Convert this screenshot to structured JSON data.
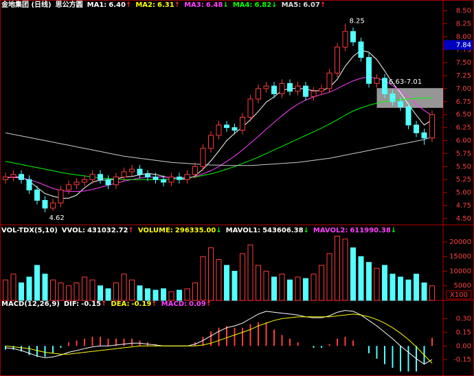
{
  "chart_data": [
    {
      "type": "candlestick",
      "title": "金地集团 (日线)",
      "subtitle": "思公方圆",
      "legend": [
        {
          "name": "MA1:",
          "label": "6.40",
          "arrow": "↑",
          "color": "#ffffff",
          "arrow_color": "#ff3030"
        },
        {
          "name": "MA2:",
          "label": "6.31",
          "arrow": "↑",
          "color": "#ffff00",
          "arrow_color": "#ff3030"
        },
        {
          "name": "MA3:",
          "label": "6.48",
          "arrow": "↓",
          "color": "#ff40ff",
          "arrow_color": "#00ff00"
        },
        {
          "name": "MA4:",
          "label": "6.82",
          "arrow": "↓",
          "color": "#00ff00",
          "arrow_color": "#00ff00"
        },
        {
          "name": "MA5:",
          "label": "6.07",
          "arrow": "↑",
          "color": "#dddddd",
          "arrow_color": "#ff3030"
        }
      ],
      "open": [
        5.25,
        5.3,
        5.35,
        5.25,
        5.05,
        4.85,
        4.7,
        4.8,
        5.05,
        5.15,
        5.2,
        5.25,
        5.35,
        5.25,
        5.15,
        5.3,
        5.4,
        5.45,
        5.35,
        5.3,
        5.25,
        5.2,
        5.3,
        5.25,
        5.35,
        5.5,
        5.85,
        6.1,
        6.3,
        6.25,
        6.2,
        6.45,
        6.8,
        7.0,
        7.05,
        6.9,
        7.1,
        6.95,
        7.05,
        6.85,
        6.95,
        7.0,
        7.3,
        7.8,
        8.1,
        7.9,
        7.6,
        7.1,
        7.2,
        6.9,
        6.75,
        6.65,
        6.3,
        6.15,
        6.05
      ],
      "high": [
        5.38,
        5.43,
        5.43,
        5.33,
        5.13,
        4.93,
        4.88,
        5.13,
        5.23,
        5.28,
        5.33,
        5.43,
        5.43,
        5.33,
        5.38,
        5.48,
        5.53,
        5.53,
        5.43,
        5.38,
        5.33,
        5.38,
        5.38,
        5.43,
        5.58,
        5.93,
        6.18,
        6.38,
        6.38,
        6.33,
        6.53,
        6.88,
        7.08,
        7.13,
        7.13,
        7.18,
        7.18,
        7.13,
        7.13,
        7.03,
        7.08,
        7.38,
        7.88,
        8.25,
        8.18,
        7.98,
        7.68,
        7.28,
        7.28,
        6.98,
        6.83,
        6.73,
        6.38,
        6.23,
        6.58
      ],
      "low": [
        5.17,
        5.22,
        5.17,
        4.97,
        4.77,
        4.62,
        4.65,
        4.72,
        4.97,
        5.07,
        5.12,
        5.17,
        5.17,
        5.07,
        5.07,
        5.22,
        5.32,
        5.27,
        5.22,
        5.17,
        5.12,
        5.12,
        5.17,
        5.17,
        5.27,
        5.42,
        5.77,
        6.02,
        6.17,
        6.12,
        6.12,
        6.37,
        6.72,
        6.92,
        6.82,
        6.82,
        6.87,
        6.87,
        6.77,
        6.77,
        6.87,
        6.92,
        7.22,
        7.72,
        7.82,
        7.52,
        7.02,
        7.02,
        6.82,
        6.67,
        6.57,
        6.22,
        6.07,
        5.92,
        5.97
      ],
      "close": [
        5.3,
        5.35,
        5.25,
        5.05,
        4.85,
        4.7,
        4.8,
        5.05,
        5.15,
        5.2,
        5.25,
        5.35,
        5.25,
        5.15,
        5.3,
        5.4,
        5.45,
        5.35,
        5.3,
        5.25,
        5.2,
        5.3,
        5.25,
        5.35,
        5.5,
        5.85,
        6.1,
        6.3,
        6.25,
        6.2,
        6.45,
        6.8,
        7.0,
        7.05,
        6.9,
        7.1,
        6.95,
        7.05,
        6.85,
        6.95,
        7.0,
        7.3,
        7.8,
        8.1,
        7.9,
        7.6,
        7.1,
        7.2,
        6.9,
        6.75,
        6.65,
        6.3,
        6.15,
        6.05,
        6.5
      ],
      "series": [
        {
          "color": "#ffffff",
          "values": [
            5.28,
            5.3,
            5.3,
            5.22,
            5.1,
            4.98,
            4.93,
            4.89,
            4.89,
            4.95,
            5.09,
            5.2,
            5.24,
            5.24,
            5.26,
            5.3,
            5.31,
            5.34,
            5.37,
            5.35,
            5.31,
            5.28,
            5.26,
            5.26,
            5.32,
            5.45,
            5.61,
            5.8,
            6.0,
            6.14,
            6.26,
            6.4,
            6.56,
            6.74,
            6.84,
            6.97,
            7.0,
            7.01,
            6.99,
            6.96,
            6.96,
            7.02,
            7.18,
            7.43,
            7.62,
            7.74,
            7.7,
            7.56,
            7.34,
            7.11,
            6.92,
            6.7,
            6.49,
            6.3,
            6.4
          ]
        },
        {
          "color": "#ff40ff",
          "values": [
            5.3,
            5.29,
            5.28,
            5.25,
            5.2,
            5.14,
            5.08,
            5.04,
            5.02,
            5.02,
            5.03,
            5.06,
            5.1,
            5.14,
            5.18,
            5.22,
            5.25,
            5.28,
            5.3,
            5.3,
            5.3,
            5.29,
            5.29,
            5.29,
            5.31,
            5.36,
            5.42,
            5.5,
            5.6,
            5.7,
            5.82,
            5.95,
            6.08,
            6.22,
            6.35,
            6.48,
            6.6,
            6.7,
            6.78,
            6.84,
            6.89,
            6.93,
            7.0,
            7.08,
            7.15,
            7.2,
            7.22,
            7.2,
            7.15,
            7.06,
            6.96,
            6.84,
            6.7,
            6.58,
            6.48
          ]
        },
        {
          "color": "#00ff00",
          "values": [
            5.6,
            5.57,
            5.54,
            5.51,
            5.48,
            5.45,
            5.42,
            5.39,
            5.36,
            5.34,
            5.32,
            5.3,
            5.28,
            5.27,
            5.26,
            5.25,
            5.25,
            5.25,
            5.25,
            5.25,
            5.25,
            5.26,
            5.27,
            5.28,
            5.3,
            5.33,
            5.36,
            5.4,
            5.45,
            5.5,
            5.56,
            5.62,
            5.68,
            5.75,
            5.82,
            5.89,
            5.96,
            6.03,
            6.1,
            6.17,
            6.24,
            6.32,
            6.4,
            6.49,
            6.57,
            6.63,
            6.68,
            6.72,
            6.75,
            6.77,
            6.79,
            6.8,
            6.81,
            6.82,
            6.82
          ]
        },
        {
          "color": "#cccccc",
          "values": [
            6.15,
            6.12,
            6.09,
            6.06,
            6.03,
            6.0,
            5.97,
            5.94,
            5.91,
            5.88,
            5.85,
            5.82,
            5.79,
            5.76,
            5.73,
            5.7,
            5.68,
            5.66,
            5.64,
            5.62,
            5.6,
            5.58,
            5.57,
            5.56,
            5.55,
            5.54,
            5.53,
            5.53,
            5.52,
            5.52,
            5.52,
            5.52,
            5.53,
            5.54,
            5.55,
            5.56,
            5.57,
            5.58,
            5.6,
            5.62,
            5.64,
            5.66,
            5.69,
            5.72,
            5.75,
            5.78,
            5.81,
            5.84,
            5.87,
            5.9,
            5.93,
            5.96,
            5.99,
            6.02,
            6.07
          ]
        }
      ],
      "annotations": [
        {
          "value": 8.25,
          "label": "8.25"
        },
        {
          "value": 4.62,
          "label": "4.62"
        }
      ],
      "zone": {
        "range": [
          6.63,
          7.01
        ],
        "label": "6.63-7.01"
      },
      "price_tag": 7.84,
      "ylim": [
        4.38,
        8.6
      ],
      "yticks": [
        {
          "value": 4.5,
          "label": "4.50"
        },
        4.75,
        {
          "value": 5,
          "label": "5.00"
        },
        5.25,
        {
          "value": 5.5,
          "label": "5.50"
        },
        5.75,
        {
          "value": 6,
          "label": "6.00"
        },
        6.25,
        {
          "value": 6.5,
          "label": "6.50"
        },
        6.75,
        {
          "value": 7,
          "label": "7.00"
        },
        7.25,
        {
          "value": 7.5,
          "label": "7.50"
        },
        7.75,
        {
          "value": 8,
          "label": "8.00"
        },
        8.25,
        {
          "value": 8.5,
          "label": "8.50"
        }
      ]
    },
    {
      "type": "volume",
      "title": "VOL-TDX(5,10)",
      "legend": [
        {
          "name": "VVOL:",
          "label": "431032.72",
          "arrow": "↑",
          "color": "#ffffff",
          "arrow_color": "#ff3030"
        },
        {
          "name": "VOLUME:",
          "label": "296335.00",
          "arrow": "↓",
          "color": "#ffff00",
          "arrow_color": "#00ff00"
        },
        {
          "name": "MAVOL1:",
          "label": "543606.38",
          "arrow": "↓",
          "color": "#ffffff",
          "arrow_color": "#00ff00"
        },
        {
          "name": "MAVOL2:",
          "label": "611990.38",
          "arrow": "↓",
          "color": "#ff40ff",
          "arrow_color": "#00ff00"
        }
      ],
      "values": [
        7000,
        9000,
        6000,
        8000,
        12000,
        9000,
        7000,
        6000,
        5000,
        6000,
        8000,
        7000,
        5000,
        4000,
        6000,
        9000,
        7000,
        5000,
        4000,
        3500,
        4000,
        3000,
        3500,
        4000,
        6000,
        15000,
        18000,
        14000,
        12000,
        10000,
        16000,
        19000,
        12000,
        10000,
        8000,
        9000,
        7000,
        8000,
        7500,
        9000,
        12000,
        16000,
        22000,
        21000,
        18000,
        15000,
        13000,
        11000,
        12000,
        9000,
        8000,
        7000,
        9000,
        6000,
        5000
      ],
      "unit": "X100",
      "ylim": [
        0,
        24700
      ],
      "yticks": [
        5000,
        10000,
        15000,
        20000
      ]
    },
    {
      "type": "macd",
      "title": "MACD(12,26,9)",
      "legend": [
        {
          "name": "DIF:",
          "label": "-0.15",
          "arrow": "↑",
          "color": "#ffffff",
          "arrow_color": "#ff3030"
        },
        {
          "name": "DEA:",
          "label": "-0.19",
          "arrow": "↑",
          "color": "#ffff00",
          "arrow_color": "#ff3030"
        },
        {
          "name": "MACD:",
          "label": "0.09",
          "arrow": "↑",
          "color": "#ff40ff",
          "arrow_color": "#ff3030"
        }
      ],
      "values": [
        -0.04,
        -0.04,
        -0.06,
        -0.1,
        -0.12,
        -0.12,
        -0.08,
        -0.02,
        0.04,
        0.06,
        0.08,
        0.1,
        0.1,
        0.08,
        0.08,
        0.08,
        0.08,
        0.06,
        0.04,
        0.02,
        0,
        0,
        0,
        0,
        0.04,
        0.1,
        0.16,
        0.2,
        0.22,
        0.2,
        0.2,
        0.24,
        0.26,
        0.26,
        0.18,
        0.12,
        0.08,
        0.04,
        0,
        -0.02,
        -0.02,
        0.02,
        0.08,
        0.1,
        0.06,
        0,
        -0.08,
        -0.14,
        -0.2,
        -0.24,
        -0.28,
        -0.28,
        -0.28,
        -0.2,
        0.09
      ],
      "series": [
        {
          "color": "#ffffff",
          "values": [
            -0.02,
            -0.03,
            -0.05,
            -0.08,
            -0.11,
            -0.13,
            -0.12,
            -0.1,
            -0.07,
            -0.05,
            -0.03,
            -0.01,
            0,
            0,
            0.01,
            0.02,
            0.03,
            0.03,
            0.02,
            0.01,
            0,
            0,
            0,
            0,
            0.02,
            0.06,
            0.11,
            0.16,
            0.2,
            0.22,
            0.25,
            0.3,
            0.35,
            0.38,
            0.37,
            0.36,
            0.35,
            0.34,
            0.32,
            0.31,
            0.31,
            0.33,
            0.37,
            0.39,
            0.38,
            0.34,
            0.28,
            0.22,
            0.15,
            0.08,
            0,
            -0.07,
            -0.14,
            -0.2,
            -0.15
          ]
        },
        {
          "color": "#ffff00",
          "values": [
            0,
            -0.01,
            -0.02,
            -0.03,
            -0.05,
            -0.07,
            -0.08,
            -0.09,
            -0.09,
            -0.08,
            -0.07,
            -0.06,
            -0.05,
            -0.04,
            -0.03,
            -0.02,
            -0.01,
            0,
            0,
            0,
            0,
            0,
            0,
            0,
            0,
            0.01,
            0.03,
            0.06,
            0.09,
            0.12,
            0.15,
            0.18,
            0.22,
            0.25,
            0.28,
            0.3,
            0.31,
            0.32,
            0.32,
            0.32,
            0.32,
            0.32,
            0.33,
            0.34,
            0.35,
            0.34,
            0.32,
            0.29,
            0.25,
            0.2,
            0.14,
            0.07,
            -0.01,
            -0.1,
            -0.19
          ]
        }
      ],
      "ylim": [
        -0.33,
        0.5
      ],
      "yticks": [
        {
          "value": -0.15,
          "label": "-0.15"
        },
        {
          "value": 0,
          "label": "0.00"
        },
        0.15,
        {
          "value": 0.3,
          "label": "0.30"
        }
      ]
    }
  ]
}
